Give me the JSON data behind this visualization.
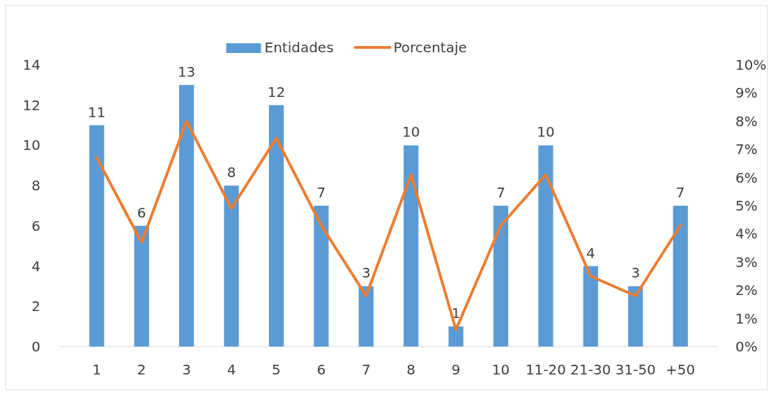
{
  "chart_data": {
    "type": "bar",
    "categories": [
      "1",
      "2",
      "3",
      "4",
      "5",
      "6",
      "7",
      "8",
      "9",
      "10",
      "11-20",
      "21-30",
      "31-50",
      "+50"
    ],
    "series": [
      {
        "name": "Entidades",
        "color": "#5b9bd5",
        "values": [
          11,
          6,
          13,
          8,
          12,
          7,
          3,
          10,
          1,
          7,
          10,
          4,
          3,
          7
        ],
        "value_labels": [
          "11",
          "6",
          "13",
          "8",
          "12",
          "7",
          "3",
          "10",
          "1",
          "7",
          "10",
          "4",
          "3",
          "7"
        ]
      },
      {
        "name": "Porcentaje",
        "type": "line",
        "axis": "y2",
        "color": "#ed7d31",
        "values": [
          6.7,
          3.7,
          8.0,
          4.9,
          7.4,
          4.3,
          1.8,
          6.1,
          0.6,
          4.3,
          6.1,
          2.5,
          1.8,
          4.3
        ]
      }
    ],
    "ylim": [
      0,
      14
    ],
    "yticks": [
      0,
      2,
      4,
      6,
      8,
      10,
      12,
      14
    ],
    "y2lim": [
      0,
      10
    ],
    "y2ticks": [
      {
        "value": 0,
        "label": "0%"
      },
      {
        "value": 1,
        "label": "1%"
      },
      {
        "value": 2,
        "label": "2%"
      },
      {
        "value": 3,
        "label": "3%"
      },
      {
        "value": 4,
        "label": "4%"
      },
      {
        "value": 5,
        "label": "5%"
      },
      {
        "value": 6,
        "label": "6%"
      },
      {
        "value": 7,
        "label": "7%"
      },
      {
        "value": 8,
        "label": "8%"
      },
      {
        "value": 9,
        "label": "9%"
      },
      {
        "value": 10,
        "label": "10%"
      }
    ],
    "grid": false,
    "legend": "top",
    "marker": "none",
    "line_style": "solid"
  }
}
